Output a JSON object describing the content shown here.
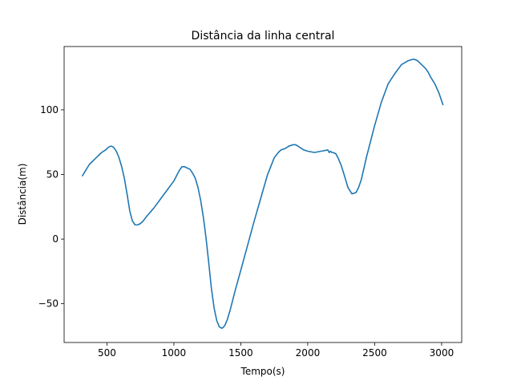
{
  "chart_data": {
    "type": "line",
    "title": "Distância da linha central",
    "xlabel": "Tempo(s)",
    "ylabel": "Distância(m)",
    "xlim": [
      180,
      3150
    ],
    "ylim": [
      -80,
      149
    ],
    "xticks": [
      500,
      1000,
      1500,
      2000,
      2500,
      3000
    ],
    "yticks": [
      -50,
      0,
      50,
      100
    ],
    "ytick_labels": [
      "−50",
      "0",
      "50",
      "100"
    ],
    "grid": false,
    "line_color": "#1f77b4",
    "series": [
      {
        "x": [
          317,
          340,
          370,
          400,
          430,
          460,
          490,
          510,
          530,
          550,
          570,
          590,
          610,
          630,
          650,
          670,
          690,
          710,
          730,
          750,
          770,
          800,
          850,
          900,
          950,
          1000,
          1020,
          1040,
          1060,
          1080,
          1100,
          1120,
          1140,
          1160,
          1180,
          1200,
          1220,
          1240,
          1260,
          1280,
          1300,
          1320,
          1340,
          1360,
          1380,
          1400,
          1420,
          1440,
          1460,
          1500,
          1550,
          1600,
          1650,
          1700,
          1750,
          1780,
          1800,
          1830,
          1860,
          1890,
          1910,
          1940,
          1970,
          2000,
          2050,
          2100,
          2150,
          2160,
          2170,
          2180,
          2190,
          2210,
          2230,
          2250,
          2280,
          2300,
          2330,
          2360,
          2380,
          2400,
          2420,
          2440,
          2460,
          2500,
          2550,
          2600,
          2650,
          2700,
          2750,
          2780,
          2800,
          2820,
          2840,
          2860,
          2880,
          2900,
          2920,
          2950,
          2980,
          3010
        ],
        "y": [
          49,
          53,
          58,
          61,
          64,
          67,
          69,
          71,
          72,
          71,
          68,
          63,
          56,
          47,
          35,
          22,
          14,
          11,
          11,
          12,
          14,
          18,
          24,
          31,
          38,
          45,
          49,
          53,
          56,
          56,
          55,
          54,
          51,
          47,
          40,
          30,
          17,
          1,
          -18,
          -38,
          -53,
          -63,
          -68,
          -69,
          -67,
          -62,
          -55,
          -47,
          -39,
          -24,
          -5,
          14,
          32,
          50,
          63,
          67,
          69,
          70,
          72,
          73,
          73,
          71,
          69,
          68,
          67,
          68,
          69,
          67,
          68,
          67,
          67,
          66,
          62,
          57,
          47,
          40,
          35,
          36,
          40,
          46,
          55,
          64,
          72,
          88,
          106,
          120,
          128,
          135,
          138,
          139,
          139,
          138,
          136,
          134,
          132,
          129,
          125,
          120,
          113,
          104
        ]
      }
    ]
  }
}
